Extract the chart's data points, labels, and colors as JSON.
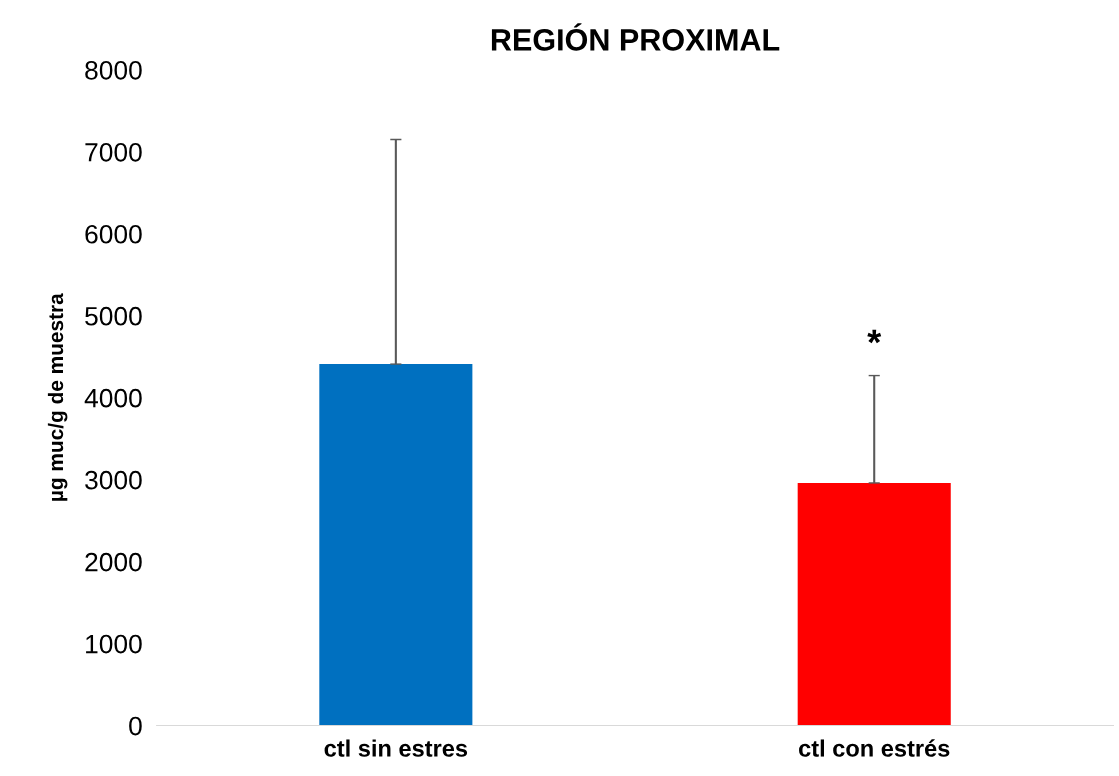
{
  "chart_data": {
    "type": "bar",
    "title": "REGIÓN PROXIMAL",
    "ylabel": "µg muc/g de muestra",
    "categories": [
      "ctl sin estres",
      "ctl con estrés"
    ],
    "values": [
      4410,
      2960
    ],
    "colors": [
      "#0070c0",
      "#ff0000"
    ],
    "errors": [
      [
        4410,
        7150
      ],
      [
        2960,
        4270
      ]
    ],
    "annotations": [
      "*"
    ],
    "ylim": [
      0,
      8000
    ],
    "yticks": [
      0,
      1000,
      2000,
      3000,
      4000,
      5000,
      6000,
      7000,
      8000
    ],
    "grid": false,
    "legend": false
  }
}
